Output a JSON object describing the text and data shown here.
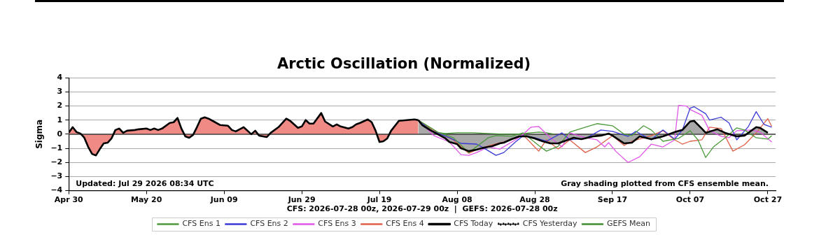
{
  "chart_data": {
    "type": "line",
    "title": "Arctic Oscillation (Normalized)",
    "xlabel": "CFS: 2026-07-28 00z, 2026-07-29 00z  |  GEFS: 2026-07-28 00z",
    "ylabel": "Sigma",
    "xlim": [
      "2026-04-30",
      "2026-10-29"
    ],
    "xticks": [
      {
        "value": "2026-04-30",
        "label": "Apr 30"
      },
      {
        "value": "2026-05-20",
        "label": "May 20"
      },
      {
        "value": "2026-06-09",
        "label": "Jun 09"
      },
      {
        "value": "2026-06-29",
        "label": "Jun 29"
      },
      {
        "value": "2026-07-19",
        "label": "Jul 19"
      },
      {
        "value": "2026-08-08",
        "label": "Aug 08"
      },
      {
        "value": "2026-08-28",
        "label": "Aug 28"
      },
      {
        "value": "2026-09-17",
        "label": "Sep 17"
      },
      {
        "value": "2026-10-07",
        "label": "Oct 07"
      },
      {
        "value": "2026-10-27",
        "label": "Oct 27"
      }
    ],
    "ylim": [
      -4,
      4
    ],
    "yticks": [
      {
        "value": -4,
        "label": "−4"
      },
      {
        "value": -3,
        "label": "−3"
      },
      {
        "value": -2,
        "label": "−2"
      },
      {
        "value": -1,
        "label": "−1"
      },
      0,
      1,
      2,
      3,
      4
    ],
    "grid": "y",
    "legend": "bottom",
    "ref_lines": [
      {
        "axis": "y",
        "value": 0,
        "color": "#404040"
      }
    ],
    "annotations": [
      "Updated: Jul 29 2026 08:34 UTC",
      "Gray shading plotted from CFS ensemble mean."
    ],
    "series": [
      {
        "type": "area",
        "color": "#f08a84",
        "x": [
          "2026-04-30",
          "2026-05-01",
          "2026-05-02",
          "2026-05-03",
          "2026-05-04",
          "2026-05-05",
          "2026-05-06",
          "2026-05-07",
          "2026-05-08",
          "2026-05-09",
          "2026-05-10",
          "2026-05-11",
          "2026-05-12",
          "2026-05-13",
          "2026-05-14",
          "2026-05-15",
          "2026-05-17",
          "2026-05-18",
          "2026-05-20",
          "2026-05-21",
          "2026-05-22",
          "2026-05-23",
          "2026-05-24",
          "2026-05-26",
          "2026-05-27",
          "2026-05-28",
          "2026-05-29",
          "2026-05-30",
          "2026-05-31",
          "2026-06-01",
          "2026-06-02",
          "2026-06-03",
          "2026-06-04",
          "2026-06-05",
          "2026-06-07",
          "2026-06-08",
          "2026-06-10",
          "2026-06-11",
          "2026-06-12",
          "2026-06-14",
          "2026-06-16",
          "2026-06-17",
          "2026-06-18",
          "2026-06-20",
          "2026-06-21",
          "2026-06-23",
          "2026-06-25",
          "2026-06-26",
          "2026-06-28",
          "2026-06-29",
          "2026-06-30",
          "2026-07-01",
          "2026-07-02",
          "2026-07-04",
          "2026-07-05",
          "2026-07-07",
          "2026-07-08",
          "2026-07-09",
          "2026-07-11",
          "2026-07-12",
          "2026-07-13",
          "2026-07-14",
          "2026-07-16",
          "2026-07-17",
          "2026-07-18",
          "2026-07-19",
          "2026-07-20",
          "2026-07-21",
          "2026-07-22",
          "2026-07-24",
          "2026-07-26",
          "2026-07-28",
          "2026-07-29"
        ],
        "values": [
          0.1,
          0.5,
          0.15,
          0.05,
          -0.25,
          -0.9,
          -1.4,
          -1.5,
          -1.05,
          -0.65,
          -0.6,
          -0.3,
          0.3,
          0.4,
          0.1,
          0.25,
          0.3,
          0.35,
          0.4,
          0.3,
          0.4,
          0.3,
          0.4,
          0.8,
          0.85,
          1.15,
          0.4,
          -0.15,
          -0.25,
          -0.05,
          0.5,
          1.1,
          1.2,
          1.1,
          0.8,
          0.65,
          0.6,
          0.3,
          0.2,
          0.5,
          0,
          0.25,
          -0.1,
          -0.2,
          0.1,
          0.5,
          1.1,
          0.95,
          0.45,
          0.55,
          1.0,
          0.75,
          0.75,
          1.5,
          0.9,
          0.55,
          0.7,
          0.55,
          0.4,
          0.5,
          0.7,
          0.8,
          1.05,
          0.85,
          0.25,
          -0.55,
          -0.5,
          -0.3,
          0.25,
          0.95,
          1.0,
          1.05,
          1.0
        ]
      },
      {
        "name": "CFS Ens 1",
        "color": "#4c9a3c",
        "x": [
          "2026-07-29",
          "2026-08-03",
          "2026-08-07",
          "2026-08-11",
          "2026-08-16",
          "2026-08-18",
          "2026-08-22",
          "2026-08-25",
          "2026-08-29",
          "2026-08-31",
          "2026-09-03",
          "2026-09-06",
          "2026-09-10",
          "2026-09-13",
          "2026-09-17",
          "2026-09-20",
          "2026-09-22",
          "2026-09-25",
          "2026-09-27",
          "2026-09-30",
          "2026-10-04",
          "2026-10-07",
          "2026-10-09",
          "2026-10-11",
          "2026-10-13",
          "2026-10-16",
          "2026-10-19",
          "2026-10-21",
          "2026-10-24",
          "2026-10-27",
          "2026-10-28"
        ],
        "values": [
          1.0,
          0.15,
          -0.25,
          -1.3,
          -0.25,
          -0.1,
          -0.15,
          0.1,
          -0.8,
          -1.2,
          -0.85,
          0.15,
          0.5,
          0.75,
          0.6,
          0,
          -0.1,
          0.6,
          0.3,
          -0.5,
          -0.3,
          0.25,
          -0.4,
          -1.65,
          -0.9,
          -0.25,
          0.45,
          0.3,
          -0.25,
          -0.35,
          -0.1
        ]
      },
      {
        "name": "CFS Ens 2",
        "color": "#3a3ad6",
        "x": [
          "2026-07-29",
          "2026-08-01",
          "2026-08-06",
          "2026-08-09",
          "2026-08-13",
          "2026-08-15",
          "2026-08-18",
          "2026-08-20",
          "2026-08-23",
          "2026-08-25",
          "2026-08-28",
          "2026-08-31",
          "2026-09-04",
          "2026-09-06",
          "2026-09-10",
          "2026-09-14",
          "2026-09-17",
          "2026-09-21",
          "2026-09-23",
          "2026-09-27",
          "2026-09-30",
          "2026-10-03",
          "2026-10-05",
          "2026-10-07",
          "2026-10-08",
          "2026-10-11",
          "2026-10-12",
          "2026-10-15",
          "2026-10-17",
          "2026-10-19",
          "2026-10-22",
          "2026-10-24",
          "2026-10-26",
          "2026-10-28"
        ],
        "values": [
          1.0,
          0.3,
          -0.25,
          -0.65,
          -0.7,
          -1.0,
          -1.5,
          -1.3,
          -0.55,
          -0.1,
          -0.25,
          -0.5,
          0.1,
          -0.4,
          -0.3,
          0.3,
          0.2,
          -0.15,
          0.2,
          -0.4,
          0.3,
          -0.35,
          0.3,
          1.85,
          1.95,
          1.45,
          1.0,
          1.2,
          0.8,
          -0.4,
          0.55,
          1.6,
          0.7,
          0.5
        ]
      },
      {
        "name": "CFS Ens 3",
        "color": "#e055e8",
        "x": [
          "2026-07-29",
          "2026-08-02",
          "2026-08-06",
          "2026-08-09",
          "2026-08-11",
          "2026-08-13",
          "2026-08-16",
          "2026-08-19",
          "2026-08-23",
          "2026-08-25",
          "2026-08-27",
          "2026-08-29",
          "2026-09-01",
          "2026-09-04",
          "2026-09-06",
          "2026-09-10",
          "2026-09-13",
          "2026-09-15",
          "2026-09-16",
          "2026-09-18",
          "2026-09-21",
          "2026-09-24",
          "2026-09-27",
          "2026-09-30",
          "2026-10-03",
          "2026-10-04",
          "2026-10-06",
          "2026-10-07",
          "2026-10-10",
          "2026-10-12",
          "2026-10-15",
          "2026-10-17",
          "2026-10-19",
          "2026-10-23",
          "2026-10-25",
          "2026-10-28"
        ],
        "values": [
          1.0,
          -0.1,
          -0.55,
          -1.45,
          -1.5,
          -1.3,
          -0.9,
          -1.05,
          -0.4,
          0,
          0.5,
          0.55,
          -0.25,
          -0.9,
          0.1,
          -0.25,
          -0.4,
          -0.9,
          -0.6,
          -1.25,
          -2.0,
          -1.6,
          -0.7,
          -0.9,
          -0.4,
          2.05,
          2.0,
          1.75,
          1.35,
          0.25,
          -0.15,
          -0.25,
          0.25,
          0.3,
          0.15,
          -0.55
        ]
      },
      {
        "name": "CFS Ens 4",
        "color": "#e0604a",
        "x": [
          "2026-07-29",
          "2026-08-03",
          "2026-08-07",
          "2026-08-11",
          "2026-08-13",
          "2026-08-17",
          "2026-08-20",
          "2026-08-23",
          "2026-08-25",
          "2026-08-29",
          "2026-08-31",
          "2026-09-03",
          "2026-09-06",
          "2026-09-10",
          "2026-09-13",
          "2026-09-17",
          "2026-09-20",
          "2026-09-22",
          "2026-09-27",
          "2026-09-30",
          "2026-10-03",
          "2026-10-05",
          "2026-10-07",
          "2026-10-10",
          "2026-10-12",
          "2026-10-15",
          "2026-10-18",
          "2026-10-21",
          "2026-10-24",
          "2026-10-27",
          "2026-10-28"
        ],
        "values": [
          1.0,
          0.1,
          -0.4,
          -1.35,
          -1.1,
          -0.75,
          -0.55,
          -0.3,
          -0.05,
          -1.2,
          -0.4,
          -1.05,
          -0.4,
          -1.3,
          -0.9,
          -0.1,
          -0.8,
          -0.5,
          -0.1,
          0.25,
          -0.4,
          -0.7,
          -0.5,
          -0.4,
          0.5,
          0.4,
          -1.2,
          -0.75,
          0.1,
          1.1,
          0.55
        ]
      },
      {
        "name": "CFS Today",
        "type": "area",
        "color": "#a9a9a9",
        "x": [
          "2026-07-29",
          "2026-07-30",
          "2026-08-01",
          "2026-08-03",
          "2026-08-05",
          "2026-08-06",
          "2026-08-08",
          "2026-08-09",
          "2026-08-11",
          "2026-08-13",
          "2026-08-15",
          "2026-08-17",
          "2026-08-19",
          "2026-08-20",
          "2026-08-22",
          "2026-08-24",
          "2026-08-26",
          "2026-08-28",
          "2026-08-30",
          "2026-09-01",
          "2026-09-03",
          "2026-09-05",
          "2026-09-07",
          "2026-09-09",
          "2026-09-12",
          "2026-09-14",
          "2026-09-16",
          "2026-09-17",
          "2026-09-20",
          "2026-09-22",
          "2026-09-24",
          "2026-09-27",
          "2026-09-30",
          "2026-10-03",
          "2026-10-05",
          "2026-10-07",
          "2026-10-08",
          "2026-10-10",
          "2026-10-11",
          "2026-10-14",
          "2026-10-16",
          "2026-10-19",
          "2026-10-21",
          "2026-10-24",
          "2026-10-25",
          "2026-10-27"
        ],
        "values": [
          1.0,
          0.65,
          0.3,
          0,
          -0.3,
          -0.55,
          -0.7,
          -1.0,
          -1.2,
          -1.1,
          -0.95,
          -0.85,
          -0.65,
          -0.6,
          -0.35,
          -0.15,
          -0.15,
          -0.3,
          -0.5,
          -0.65,
          -0.65,
          -0.45,
          -0.25,
          -0.35,
          -0.15,
          -0.1,
          0.05,
          -0.1,
          -0.65,
          -0.6,
          -0.15,
          -0.35,
          -0.15,
          0.15,
          0.3,
          0.9,
          0.95,
          0.4,
          0.1,
          0.35,
          0.1,
          -0.15,
          -0.1,
          0.5,
          0.45,
          0.1
        ]
      },
      {
        "name": "CFS Yesterday",
        "color": "#000000",
        "line_style": "dotted"
      },
      {
        "name": "GEFS Mean",
        "color": "#3f8f2e",
        "x": [
          "2026-07-29",
          "2026-07-31",
          "2026-08-02",
          "2026-08-05",
          "2026-08-08",
          "2026-08-12",
          "2026-08-16",
          "2026-08-20",
          "2026-08-24",
          "2026-08-27",
          "2026-08-29",
          "2026-08-31",
          "2026-09-02"
        ],
        "values": [
          1.0,
          0.6,
          0.15,
          0.05,
          0.1,
          0.1,
          0.05,
          0,
          0,
          0.1,
          0.15,
          0.1,
          0
        ]
      }
    ]
  }
}
